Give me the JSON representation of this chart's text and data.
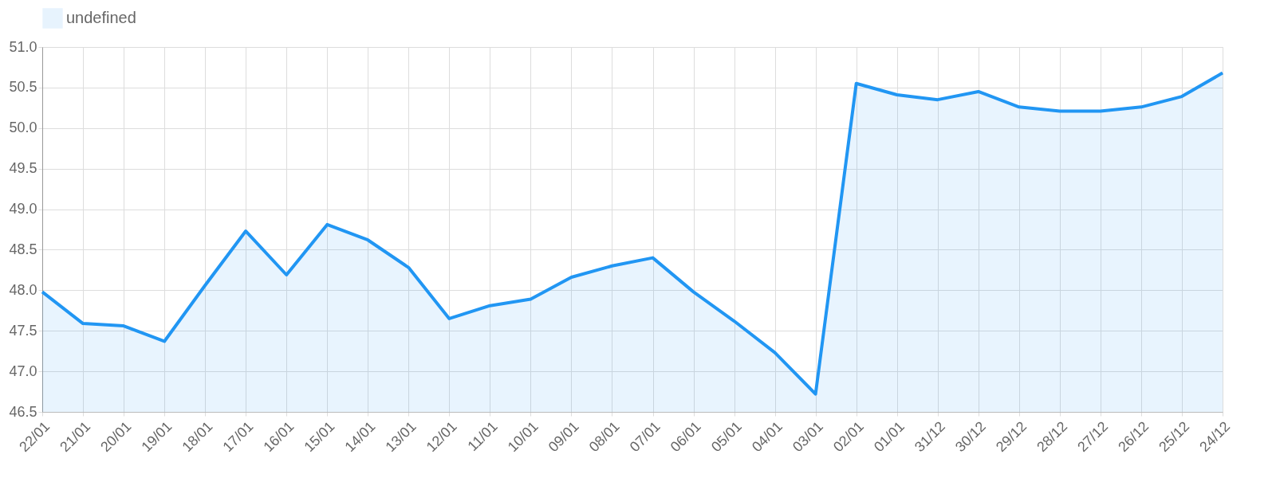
{
  "chart_data": {
    "type": "area",
    "categories": [
      "22/01",
      "21/01",
      "20/01",
      "19/01",
      "18/01",
      "17/01",
      "16/01",
      "15/01",
      "14/01",
      "13/01",
      "12/01",
      "11/01",
      "10/01",
      "09/01",
      "08/01",
      "07/01",
      "06/01",
      "05/01",
      "04/01",
      "03/01",
      "02/01",
      "01/01",
      "31/12",
      "30/12",
      "29/12",
      "28/12",
      "27/12",
      "26/12",
      "25/12",
      "24/12"
    ],
    "series": [
      {
        "name": "undefined",
        "color": "#2196f3",
        "values": [
          47.98,
          47.59,
          47.56,
          47.37,
          48.06,
          48.73,
          48.19,
          48.81,
          48.62,
          48.28,
          47.65,
          47.81,
          47.89,
          48.16,
          48.3,
          48.4,
          47.98,
          47.62,
          47.23,
          46.72,
          50.55,
          50.41,
          50.35,
          50.45,
          50.26,
          50.21,
          50.21,
          50.26,
          50.39,
          50.68
        ]
      }
    ],
    "ylim": [
      46.5,
      51.0
    ],
    "yticks": [
      {
        "value": 46.5,
        "label": "46.5"
      },
      {
        "value": 47,
        "label": "47.0"
      },
      {
        "value": 47.5,
        "label": "47.5"
      },
      {
        "value": 48,
        "label": "48.0"
      },
      {
        "value": 48.5,
        "label": "48.5"
      },
      {
        "value": 49,
        "label": "49.0"
      },
      {
        "value": 49.5,
        "label": "49.5"
      },
      {
        "value": 50,
        "label": "50.0"
      },
      {
        "value": 50.5,
        "label": "50.5"
      },
      {
        "value": 51,
        "label": "51.0"
      }
    ],
    "grid": true,
    "legend": "top",
    "marker": "none",
    "line_style": "solid"
  }
}
